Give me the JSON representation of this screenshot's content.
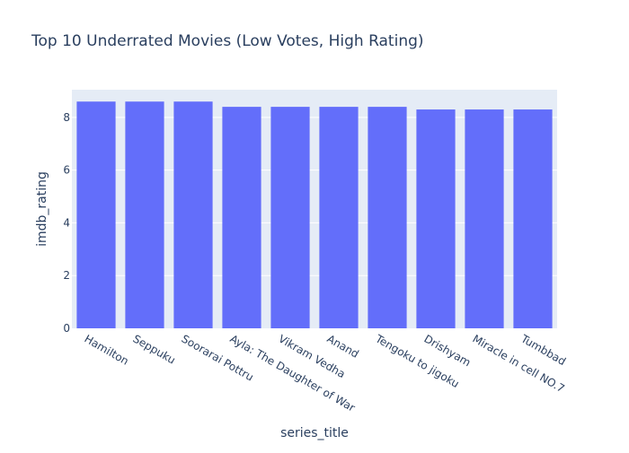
{
  "chart_data": {
    "type": "bar",
    "title": "Top 10 Underrated Movies (Low Votes, High Rating)",
    "xlabel": "series_title",
    "ylabel": "imdb_rating",
    "categories": [
      "Hamilton",
      "Seppuku",
      "Soorarai Pottru",
      "Ayla: The Daughter of War",
      "Vikram Vedha",
      "Anand",
      "Tengoku to jigoku",
      "Drishyam",
      "Miracle in cell NO.7",
      "Tumbbad"
    ],
    "values": [
      8.6,
      8.6,
      8.6,
      8.4,
      8.4,
      8.4,
      8.4,
      8.3,
      8.3,
      8.3
    ],
    "ylim": [
      0,
      9.05
    ],
    "yticks": [
      0,
      2,
      4,
      6,
      8
    ],
    "grid": true,
    "bar_color": "#636efa",
    "plot_background": "#e5ecf6"
  }
}
